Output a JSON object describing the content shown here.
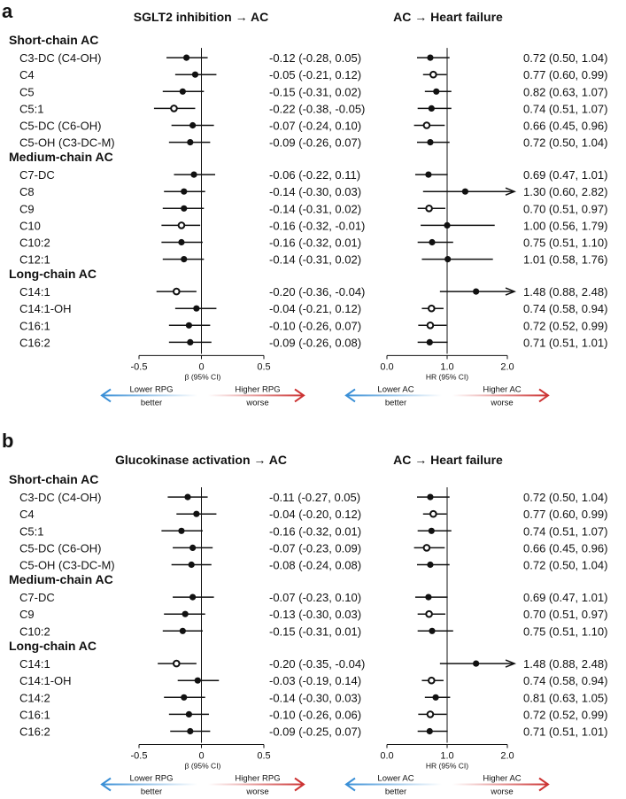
{
  "chart_data": [
    {
      "panel": "a",
      "type": "forest",
      "left": {
        "title": "SGLT2 inhibition → AC",
        "xlabel": "β (95% CI)",
        "ticks": [
          "-0.5",
          "0",
          "0.5"
        ],
        "xlim": [
          -0.5,
          0.5
        ],
        "arrow_left": [
          "Lower RPG",
          "better"
        ],
        "arrow_right": [
          "Higher RPG",
          "worse"
        ]
      },
      "right": {
        "title": "AC → Heart failure",
        "xlabel": "HR (95% CI)",
        "ticks": [
          "0.0",
          "1.0",
          "2.0"
        ],
        "xlim": [
          0,
          2
        ],
        "arrow_left": [
          "Lower AC",
          "better"
        ],
        "arrow_right": [
          "Higher AC",
          "worse"
        ]
      },
      "groups": [
        {
          "name": "Short-chain AC",
          "rows": [
            {
              "label": "C3-DC (C4-OH)",
              "beta": -0.12,
              "bl": -0.28,
              "bh": 0.05,
              "btext": "-0.12 (-0.28, 0.05)",
              "bopen": false,
              "hr": 0.72,
              "hl": 0.5,
              "hh": 1.04,
              "htext": "0.72 (0.50, 1.04)",
              "hopen": false
            },
            {
              "label": "C4",
              "beta": -0.05,
              "bl": -0.21,
              "bh": 0.12,
              "btext": "-0.05 (-0.21, 0.12)",
              "bopen": false,
              "hr": 0.77,
              "hl": 0.6,
              "hh": 0.99,
              "htext": "0.77 (0.60, 0.99)",
              "hopen": true
            },
            {
              "label": "C5",
              "beta": -0.15,
              "bl": -0.31,
              "bh": 0.02,
              "btext": "-0.15 (-0.31, 0.02)",
              "bopen": false,
              "hr": 0.82,
              "hl": 0.63,
              "hh": 1.07,
              "htext": "0.82 (0.63, 1.07)",
              "hopen": false
            },
            {
              "label": "C5:1",
              "beta": -0.22,
              "bl": -0.38,
              "bh": -0.05,
              "btext": "-0.22 (-0.38, -0.05)",
              "bopen": true,
              "hr": 0.74,
              "hl": 0.51,
              "hh": 1.07,
              "htext": "0.74 (0.51, 1.07)",
              "hopen": false
            },
            {
              "label": "C5-DC (C6-OH)",
              "beta": -0.07,
              "bl": -0.24,
              "bh": 0.1,
              "btext": "-0.07 (-0.24, 0.10)",
              "bopen": false,
              "hr": 0.66,
              "hl": 0.45,
              "hh": 0.96,
              "htext": "0.66 (0.45, 0.96)",
              "hopen": true
            },
            {
              "label": "C5-OH (C3-DC-M)",
              "beta": -0.09,
              "bl": -0.26,
              "bh": 0.07,
              "btext": "-0.09 (-0.26, 0.07)",
              "bopen": false,
              "hr": 0.72,
              "hl": 0.5,
              "hh": 1.04,
              "htext": "0.72 (0.50, 1.04)",
              "hopen": false
            }
          ]
        },
        {
          "name": "Medium-chain AC",
          "rows": [
            {
              "label": "C7-DC",
              "beta": -0.06,
              "bl": -0.22,
              "bh": 0.11,
              "btext": "-0.06 (-0.22, 0.11)",
              "bopen": false,
              "hr": 0.69,
              "hl": 0.47,
              "hh": 1.01,
              "htext": "0.69 (0.47, 1.01)",
              "hopen": false
            },
            {
              "label": "C8",
              "beta": -0.14,
              "bl": -0.3,
              "bh": 0.03,
              "btext": "-0.14 (-0.30, 0.03)",
              "bopen": false,
              "hr": 1.3,
              "hl": 0.6,
              "hh": 2.82,
              "htext": "1.30 (0.60, 2.82)",
              "hopen": false
            },
            {
              "label": "C9",
              "beta": -0.14,
              "bl": -0.31,
              "bh": 0.02,
              "btext": "-0.14 (-0.31, 0.02)",
              "bopen": false,
              "hr": 0.7,
              "hl": 0.51,
              "hh": 0.97,
              "htext": "0.70 (0.51, 0.97)",
              "hopen": true
            },
            {
              "label": "C10",
              "beta": -0.16,
              "bl": -0.32,
              "bh": -0.01,
              "btext": "-0.16 (-0.32, -0.01)",
              "bopen": true,
              "hr": 1.0,
              "hl": 0.56,
              "hh": 1.79,
              "htext": "1.00 (0.56, 1.79)",
              "hopen": false
            },
            {
              "label": "C10:2",
              "beta": -0.16,
              "bl": -0.32,
              "bh": 0.01,
              "btext": "-0.16 (-0.32, 0.01)",
              "bopen": false,
              "hr": 0.75,
              "hl": 0.51,
              "hh": 1.1,
              "htext": "0.75 (0.51, 1.10)",
              "hopen": false
            },
            {
              "label": "C12:1",
              "beta": -0.14,
              "bl": -0.31,
              "bh": 0.02,
              "btext": "-0.14 (-0.31, 0.02)",
              "bopen": false,
              "hr": 1.01,
              "hl": 0.58,
              "hh": 1.76,
              "htext": "1.01 (0.58, 1.76)",
              "hopen": false
            }
          ]
        },
        {
          "name": "Long-chain AC",
          "rows": [
            {
              "label": "C14:1",
              "beta": -0.2,
              "bl": -0.36,
              "bh": -0.04,
              "btext": "-0.20 (-0.36, -0.04)",
              "bopen": true,
              "hr": 1.48,
              "hl": 0.88,
              "hh": 2.48,
              "htext": "1.48 (0.88, 2.48)",
              "hopen": false
            },
            {
              "label": "C14:1-OH",
              "beta": -0.04,
              "bl": -0.21,
              "bh": 0.12,
              "btext": "-0.04 (-0.21, 0.12)",
              "bopen": false,
              "hr": 0.74,
              "hl": 0.58,
              "hh": 0.94,
              "htext": "0.74 (0.58, 0.94)",
              "hopen": true
            },
            {
              "label": "C16:1",
              "beta": -0.1,
              "bl": -0.26,
              "bh": 0.07,
              "btext": "-0.10 (-0.26, 0.07)",
              "bopen": false,
              "hr": 0.72,
              "hl": 0.52,
              "hh": 0.99,
              "htext": "0.72 (0.52, 0.99)",
              "hopen": true
            },
            {
              "label": "C16:2",
              "beta": -0.09,
              "bl": -0.26,
              "bh": 0.08,
              "btext": "-0.09 (-0.26, 0.08)",
              "bopen": false,
              "hr": 0.71,
              "hl": 0.51,
              "hh": 1.01,
              "htext": "0.71 (0.51, 1.01)",
              "hopen": false
            }
          ]
        }
      ]
    },
    {
      "panel": "b",
      "type": "forest",
      "left": {
        "title": "Glucokinase activation → AC",
        "xlabel": "β (95% CI)",
        "ticks": [
          "-0.5",
          "0",
          "0.5"
        ],
        "xlim": [
          -0.5,
          0.5
        ],
        "arrow_left": [
          "Lower RPG",
          "better"
        ],
        "arrow_right": [
          "Higher RPG",
          "worse"
        ]
      },
      "right": {
        "title": "AC → Heart failure",
        "xlabel": "HR (95% CI)",
        "ticks": [
          "0.0",
          "1.0",
          "2.0"
        ],
        "xlim": [
          0,
          2
        ],
        "arrow_left": [
          "Lower AC",
          "better"
        ],
        "arrow_right": [
          "Higher AC",
          "worse"
        ]
      },
      "groups": [
        {
          "name": "Short-chain AC",
          "rows": [
            {
              "label": "C3-DC (C4-OH)",
              "beta": -0.11,
              "bl": -0.27,
              "bh": 0.05,
              "btext": "-0.11 (-0.27, 0.05)",
              "bopen": false,
              "hr": 0.72,
              "hl": 0.5,
              "hh": 1.04,
              "htext": "0.72 (0.50, 1.04)",
              "hopen": false
            },
            {
              "label": "C4",
              "beta": -0.04,
              "bl": -0.2,
              "bh": 0.12,
              "btext": "-0.04 (-0.20, 0.12)",
              "bopen": false,
              "hr": 0.77,
              "hl": 0.6,
              "hh": 0.99,
              "htext": "0.77 (0.60, 0.99)",
              "hopen": true
            },
            {
              "label": "C5:1",
              "beta": -0.16,
              "bl": -0.32,
              "bh": 0.01,
              "btext": "-0.16 (-0.32, 0.01)",
              "bopen": false,
              "hr": 0.74,
              "hl": 0.51,
              "hh": 1.07,
              "htext": "0.74 (0.51, 1.07)",
              "hopen": false
            },
            {
              "label": "C5-DC (C6-OH)",
              "beta": -0.07,
              "bl": -0.23,
              "bh": 0.09,
              "btext": "-0.07 (-0.23, 0.09)",
              "bopen": false,
              "hr": 0.66,
              "hl": 0.45,
              "hh": 0.96,
              "htext": "0.66 (0.45, 0.96)",
              "hopen": true
            },
            {
              "label": "C5-OH (C3-DC-M)",
              "beta": -0.08,
              "bl": -0.24,
              "bh": 0.08,
              "btext": "-0.08 (-0.24, 0.08)",
              "bopen": false,
              "hr": 0.72,
              "hl": 0.5,
              "hh": 1.04,
              "htext": "0.72 (0.50, 1.04)",
              "hopen": false
            }
          ]
        },
        {
          "name": "Medium-chain AC",
          "rows": [
            {
              "label": "C7-DC",
              "beta": -0.07,
              "bl": -0.23,
              "bh": 0.1,
              "btext": "-0.07 (-0.23, 0.10)",
              "bopen": false,
              "hr": 0.69,
              "hl": 0.47,
              "hh": 1.01,
              "htext": "0.69 (0.47, 1.01)",
              "hopen": false
            },
            {
              "label": "C9",
              "beta": -0.13,
              "bl": -0.3,
              "bh": 0.03,
              "btext": "-0.13 (-0.30, 0.03)",
              "bopen": false,
              "hr": 0.7,
              "hl": 0.51,
              "hh": 0.97,
              "htext": "0.70 (0.51, 0.97)",
              "hopen": true
            },
            {
              "label": "C10:2",
              "beta": -0.15,
              "bl": -0.31,
              "bh": 0.01,
              "btext": "-0.15 (-0.31, 0.01)",
              "bopen": false,
              "hr": 0.75,
              "hl": 0.51,
              "hh": 1.1,
              "htext": "0.75 (0.51, 1.10)",
              "hopen": false
            }
          ]
        },
        {
          "name": "Long-chain AC",
          "rows": [
            {
              "label": "C14:1",
              "beta": -0.2,
              "bl": -0.35,
              "bh": -0.04,
              "btext": "-0.20 (-0.35, -0.04)",
              "bopen": true,
              "hr": 1.48,
              "hl": 0.88,
              "hh": 2.48,
              "htext": "1.48 (0.88, 2.48)",
              "hopen": false
            },
            {
              "label": "C14:1-OH",
              "beta": -0.03,
              "bl": -0.19,
              "bh": 0.14,
              "btext": "-0.03 (-0.19, 0.14)",
              "bopen": false,
              "hr": 0.74,
              "hl": 0.58,
              "hh": 0.94,
              "htext": "0.74 (0.58, 0.94)",
              "hopen": true
            },
            {
              "label": "C14:2",
              "beta": -0.14,
              "bl": -0.3,
              "bh": 0.03,
              "btext": "-0.14 (-0.30, 0.03)",
              "bopen": false,
              "hr": 0.81,
              "hl": 0.63,
              "hh": 1.05,
              "htext": "0.81 (0.63, 1.05)",
              "hopen": false
            },
            {
              "label": "C16:1",
              "beta": -0.1,
              "bl": -0.26,
              "bh": 0.06,
              "btext": "-0.10 (-0.26, 0.06)",
              "bopen": false,
              "hr": 0.72,
              "hl": 0.52,
              "hh": 0.99,
              "htext": "0.72 (0.52, 0.99)",
              "hopen": true
            },
            {
              "label": "C16:2",
              "beta": -0.09,
              "bl": -0.25,
              "bh": 0.07,
              "btext": "-0.09 (-0.25, 0.07)",
              "bopen": false,
              "hr": 0.71,
              "hl": 0.51,
              "hh": 1.01,
              "htext": "0.71 (0.51, 1.01)",
              "hopen": false
            }
          ]
        }
      ]
    }
  ],
  "colors": {
    "better": "#3a8fd6",
    "worse": "#cc3333",
    "ink": "#111111"
  }
}
